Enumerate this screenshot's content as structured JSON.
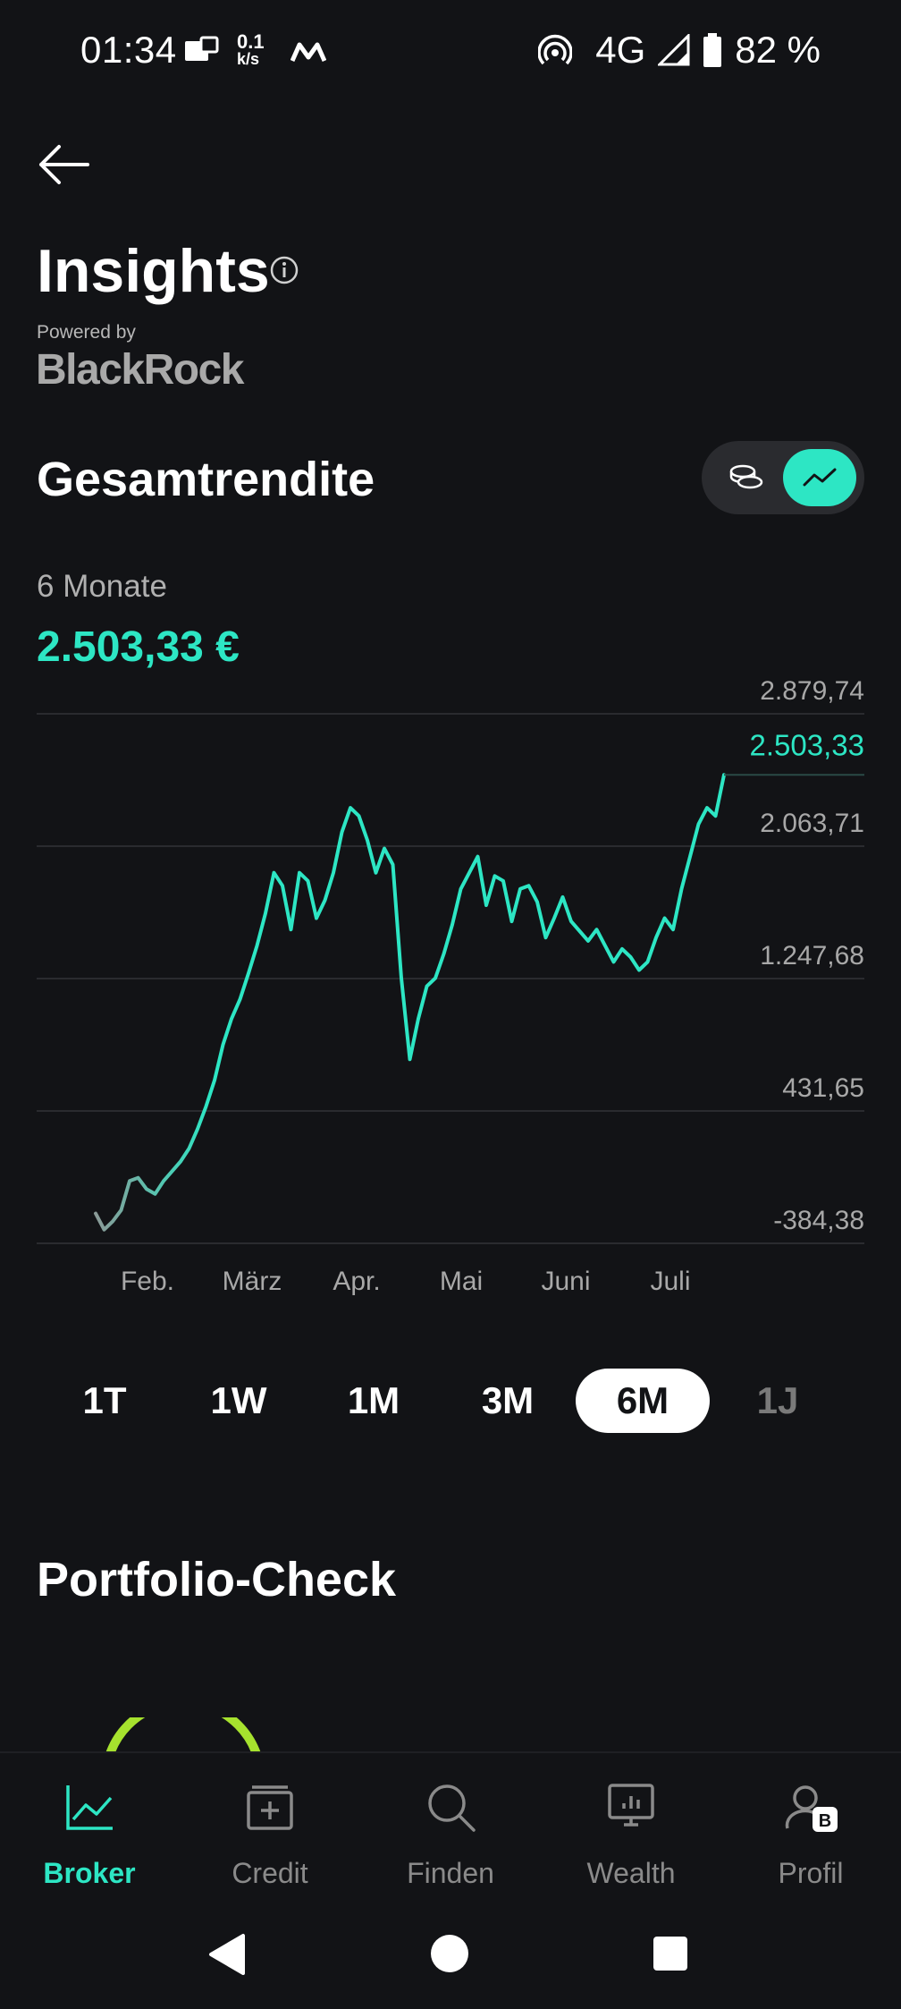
{
  "status_bar": {
    "time": "01:34",
    "net_speed_top": "0.1",
    "net_speed_bottom": "k/s",
    "network": "4G",
    "battery": "82 %"
  },
  "header": {
    "title": "Insights",
    "powered_by": "Powered by",
    "brand": "BlackRock"
  },
  "returns": {
    "title": "Gesamtrendite",
    "period": "6 Monate",
    "total": "2.503,33 €",
    "toggle": {
      "options": [
        "coins-icon",
        "trend-line-icon"
      ],
      "selected": "trend-line-icon"
    }
  },
  "chart_data": {
    "type": "line",
    "title": "",
    "x_labels": [
      "Feb.",
      "März",
      "Apr.",
      "Mai",
      "Juni",
      "Juli"
    ],
    "y_ticks": [
      "2.879,74",
      "2.063,71",
      "1.247,68",
      "431,65",
      "-384,38"
    ],
    "ylim": [
      -384.38,
      2879.74
    ],
    "current_value_label": "2.503,33",
    "current_value": 2503.33,
    "grid": true,
    "line_color": "#2de6c4",
    "series": [
      {
        "values": [
          -200,
          -300,
          -250,
          -180,
          0,
          20,
          -50,
          -80,
          0,
          60,
          120,
          200,
          320,
          460,
          620,
          840,
          1000,
          1120,
          1280,
          1450,
          1650,
          1900,
          1820,
          1550,
          1900,
          1850,
          1620,
          1730,
          1900,
          2150,
          2300,
          2250,
          2100,
          1900,
          2050,
          1950,
          1250,
          750,
          1000,
          1200,
          1250,
          1400,
          1580,
          1800,
          1900,
          2000,
          1700,
          1880,
          1850,
          1600,
          1800,
          1820,
          1720,
          1500,
          1620,
          1750,
          1600,
          1540,
          1480,
          1550,
          1450,
          1350,
          1430,
          1380,
          1300,
          1350,
          1500,
          1620,
          1550,
          1800,
          2000,
          2200,
          2300,
          2250,
          2503
        ]
      }
    ]
  },
  "ranges": {
    "options": [
      "1T",
      "1W",
      "1M",
      "3M",
      "6M",
      "1J"
    ],
    "selected": "6M"
  },
  "portfolio": {
    "title": "Portfolio-Check"
  },
  "nav": {
    "items": [
      {
        "label": "Broker",
        "icon": "chart-line-icon",
        "active": true
      },
      {
        "label": "Credit",
        "icon": "credit-card-plus-icon",
        "active": false
      },
      {
        "label": "Finden",
        "icon": "search-icon",
        "active": false
      },
      {
        "label": "Wealth",
        "icon": "monitor-chart-icon",
        "active": false
      },
      {
        "label": "Profil",
        "icon": "profile-icon",
        "badge": "B",
        "active": false
      }
    ]
  },
  "colors": {
    "accent": "#2de6c4",
    "background": "#121316",
    "muted_text": "#b0b0b0",
    "gauge": "#a6e22e"
  }
}
